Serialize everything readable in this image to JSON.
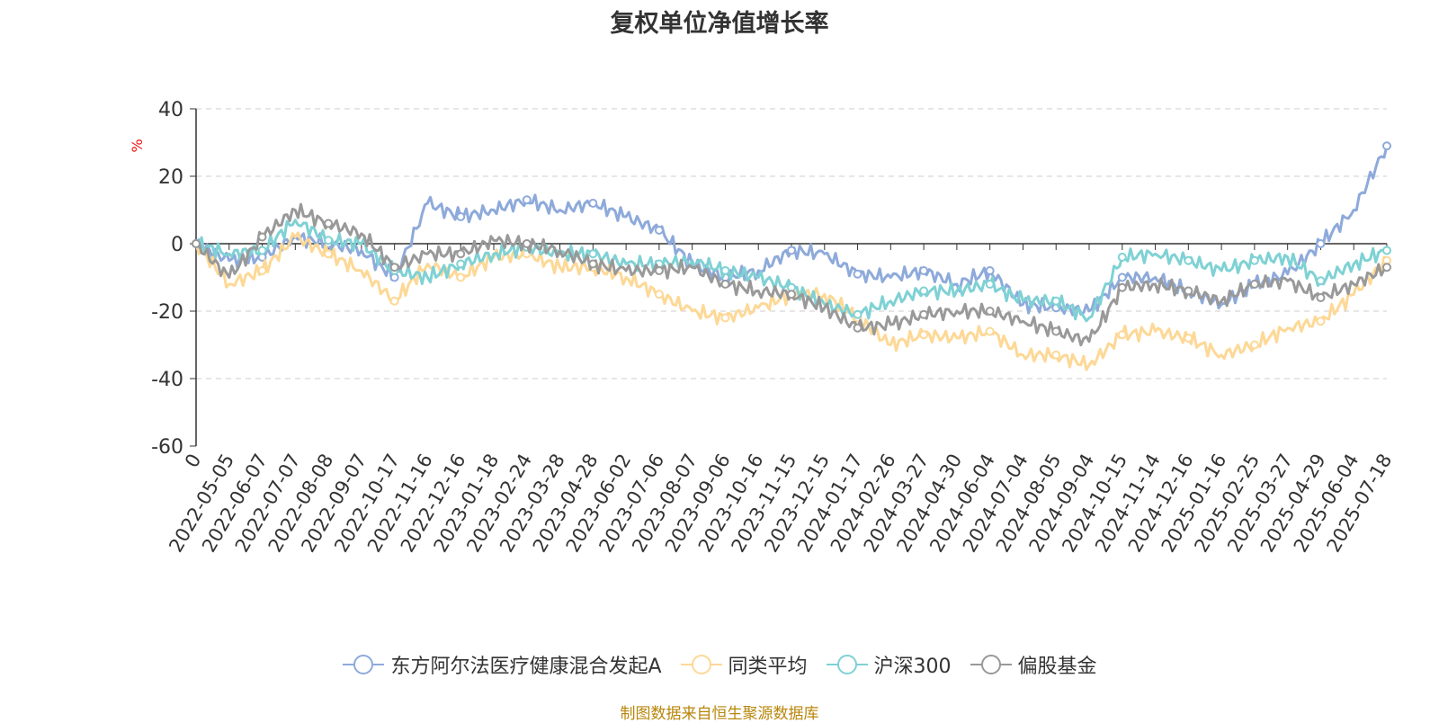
{
  "chart_data": {
    "type": "line",
    "title": "复权单位净值增长率",
    "ylabel": "%",
    "ylim": [
      -60,
      40
    ],
    "yticks": [
      "40",
      "20",
      "0",
      "-20",
      "-40",
      "-60"
    ],
    "grid": true,
    "legend_position": "bottom",
    "categories": [
      "0",
      "2022-05-05",
      "2022-06-07",
      "2022-07-07",
      "2022-08-08",
      "2022-09-07",
      "2022-10-17",
      "2022-11-16",
      "2022-12-16",
      "2023-01-18",
      "2023-02-24",
      "2023-03-28",
      "2023-04-28",
      "2023-06-02",
      "2023-07-06",
      "2023-08-07",
      "2023-09-06",
      "2023-10-16",
      "2023-11-15",
      "2023-12-15",
      "2024-01-17",
      "2024-02-26",
      "2024-03-27",
      "2024-04-30",
      "2024-06-04",
      "2024-07-04",
      "2024-08-05",
      "2024-09-04",
      "2024-10-15",
      "2024-11-14",
      "2024-12-16",
      "2025-01-16",
      "2025-02-25",
      "2025-03-27",
      "2025-04-29",
      "2025-06-04",
      "2025-07-18"
    ],
    "series": [
      {
        "name": "东方阿尔法医疗健康混合发起A",
        "color": "#8eaadb",
        "values": [
          0,
          -5,
          -4,
          2,
          0,
          -2,
          -10,
          12,
          8,
          10,
          13,
          10,
          12,
          8,
          4,
          -6,
          -10,
          -8,
          -2,
          -3,
          -9,
          -10,
          -8,
          -12,
          -8,
          -18,
          -19,
          -20,
          -10,
          -10,
          -14,
          -18,
          -12,
          -9,
          0,
          10,
          29
        ]
      },
      {
        "name": "同类平均",
        "color": "#fdd896",
        "values": [
          0,
          -12,
          -8,
          2,
          -3,
          -8,
          -17,
          -6,
          -10,
          -4,
          -3,
          -7,
          -7,
          -10,
          -15,
          -20,
          -22,
          -19,
          -15,
          -15,
          -22,
          -30,
          -27,
          -28,
          -26,
          -33,
          -33,
          -36,
          -27,
          -26,
          -28,
          -33,
          -30,
          -25,
          -23,
          -15,
          -5
        ]
      },
      {
        "name": "沪深300",
        "color": "#7fd1d4",
        "values": [
          0,
          -3,
          -2,
          7,
          1,
          0,
          -8,
          -10,
          -6,
          -3,
          -1,
          -3,
          -3,
          -6,
          -6,
          -5,
          -8,
          -10,
          -13,
          -18,
          -21,
          -17,
          -14,
          -14,
          -12,
          -17,
          -17,
          -22,
          -4,
          -3,
          -5,
          -8,
          -5,
          -4,
          -11,
          -6,
          -2
        ]
      },
      {
        "name": "偏股基金",
        "color": "#999999",
        "values": [
          0,
          -10,
          2,
          10,
          6,
          3,
          -7,
          -3,
          -3,
          1,
          0,
          -2,
          -6,
          -8,
          -8,
          -7,
          -12,
          -14,
          -15,
          -19,
          -25,
          -24,
          -21,
          -20,
          -20,
          -23,
          -26,
          -29,
          -13,
          -12,
          -14,
          -17,
          -12,
          -11,
          -16,
          -12,
          -7
        ]
      }
    ]
  },
  "legend": {
    "items": [
      "东方阿尔法医疗健康混合发起A",
      "同类平均",
      "沪深300",
      "偏股基金"
    ]
  },
  "source_note": "制图数据来自恒生聚源数据库"
}
